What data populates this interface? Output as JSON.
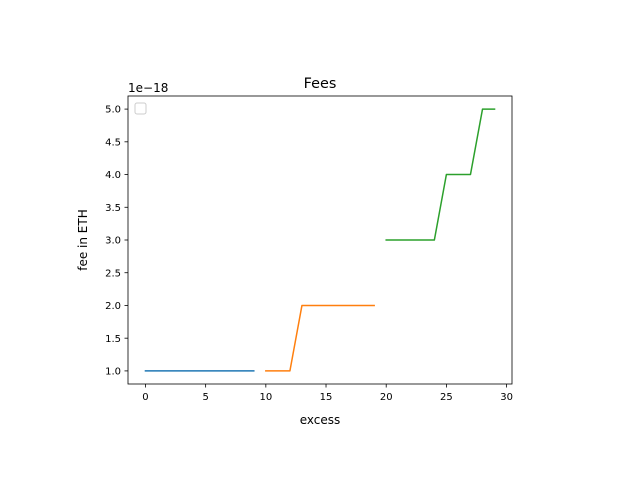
{
  "chart_data": {
    "type": "line",
    "title": "Fees",
    "xlabel": "excess",
    "ylabel": "fee in ETH",
    "y_offset_label": "1e−18",
    "xlim": [
      -1.45,
      30.45
    ],
    "ylim": [
      0.8,
      5.2
    ],
    "xticks": [
      0,
      5,
      10,
      15,
      20,
      25,
      30
    ],
    "xtick_labels": [
      "0",
      "5",
      "10",
      "15",
      "20",
      "25",
      "30"
    ],
    "yticks": [
      1.0,
      1.5,
      2.0,
      2.5,
      3.0,
      3.5,
      4.0,
      4.5,
      5.0
    ],
    "ytick_labels": [
      "1.0",
      "1.5",
      "2.0",
      "2.5",
      "3.0",
      "3.5",
      "4.0",
      "4.5",
      "5.0"
    ],
    "grid": false,
    "legend": {
      "location": "upper-left",
      "entries": []
    },
    "series": [
      {
        "color": "#1f77b4",
        "x": [
          0,
          1,
          2,
          3,
          4,
          5,
          6,
          7,
          8,
          9
        ],
        "y": [
          1,
          1,
          1,
          1,
          1,
          1,
          1,
          1,
          1,
          1
        ]
      },
      {
        "color": "#ff7f0e",
        "x": [
          10,
          11,
          12,
          13,
          14,
          15,
          16,
          17,
          18,
          19
        ],
        "y": [
          1,
          1,
          1,
          2,
          2,
          2,
          2,
          2,
          2,
          2
        ]
      },
      {
        "color": "#2ca02c",
        "x": [
          20,
          21,
          22,
          23,
          24,
          25,
          26,
          27,
          28,
          29
        ],
        "y": [
          3,
          3,
          3,
          3,
          3,
          4,
          4,
          4,
          5,
          5
        ]
      }
    ]
  }
}
